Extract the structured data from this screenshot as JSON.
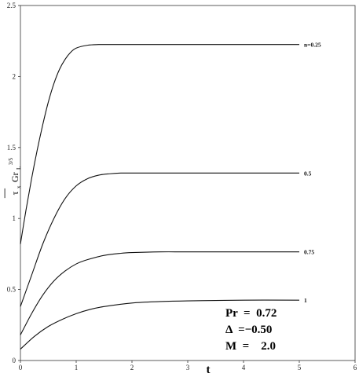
{
  "chart_data": {
    "type": "line",
    "xlabel": "t",
    "ylabel": {
      "overbar": "—",
      "tau": "τ",
      "tau_sub": "x",
      "gr": "Gr",
      "gr_sub": "L",
      "gr_sup": "3/5"
    },
    "xlim": [
      0,
      6
    ],
    "ylim": [
      0,
      2.5
    ],
    "x_ticks": [
      "0",
      "1",
      "2",
      "3",
      "4",
      "5",
      "6"
    ],
    "y_ticks": [
      "0",
      "0.5",
      "1",
      "1.5",
      "2",
      "2.5"
    ],
    "grid": false,
    "series": [
      {
        "name": "n=0.25",
        "x": [
          0,
          0.1,
          0.2,
          0.3,
          0.4,
          0.5,
          0.6,
          0.7,
          0.8,
          0.9,
          1.0,
          1.2,
          1.4,
          1.6,
          2,
          3,
          4,
          5
        ],
        "y": [
          0.82,
          1.06,
          1.28,
          1.48,
          1.66,
          1.82,
          1.95,
          2.05,
          2.12,
          2.17,
          2.2,
          2.22,
          2.225,
          2.225,
          2.225,
          2.225,
          2.225,
          2.225
        ]
      },
      {
        "name": "0.5",
        "x": [
          0,
          0.2,
          0.4,
          0.6,
          0.8,
          1.0,
          1.2,
          1.4,
          1.6,
          1.8,
          2,
          3,
          4,
          5
        ],
        "y": [
          0.38,
          0.6,
          0.82,
          1.0,
          1.14,
          1.23,
          1.28,
          1.305,
          1.315,
          1.32,
          1.32,
          1.32,
          1.32,
          1.32
        ]
      },
      {
        "name": "0.75",
        "x": [
          0,
          0.2,
          0.4,
          0.6,
          0.8,
          1.0,
          1.2,
          1.5,
          1.8,
          2.0,
          2.5,
          3,
          4,
          5
        ],
        "y": [
          0.18,
          0.33,
          0.46,
          0.56,
          0.63,
          0.68,
          0.71,
          0.74,
          0.755,
          0.76,
          0.765,
          0.765,
          0.765,
          0.765
        ]
      },
      {
        "name": "1",
        "x": [
          0,
          0.25,
          0.5,
          0.75,
          1.0,
          1.25,
          1.5,
          2.0,
          2.5,
          3,
          4,
          5
        ],
        "y": [
          0.08,
          0.17,
          0.24,
          0.29,
          0.33,
          0.36,
          0.38,
          0.405,
          0.415,
          0.42,
          0.425,
          0.425
        ]
      }
    ],
    "annotations": [
      {
        "lines": [
          "Pr  =  0.72",
          "Δ  =−0.50",
          "M  =    2.0"
        ]
      }
    ]
  }
}
